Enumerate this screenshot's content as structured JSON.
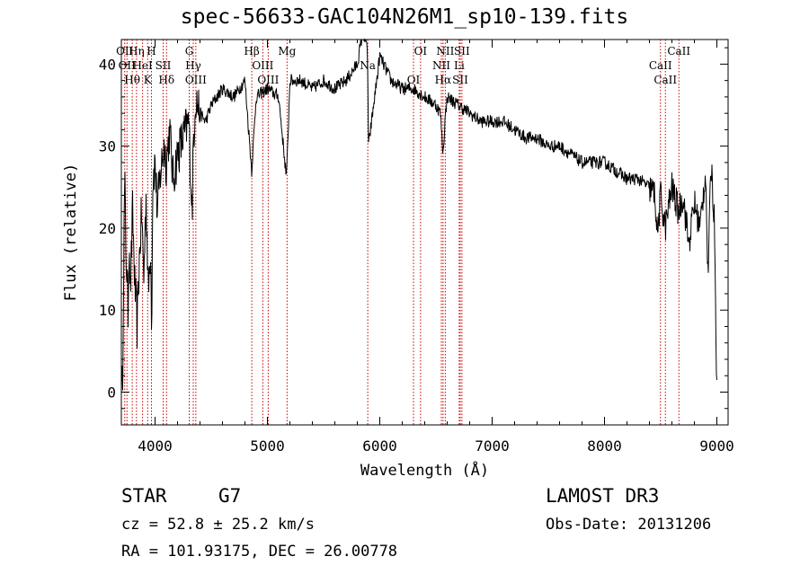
{
  "chart_data": {
    "type": "line",
    "title": "spec-56633-GAC104N26M1_sp10-139.fits",
    "xlabel": "Wavelength (Å)",
    "ylabel": "Flux (relative)",
    "xlim": [
      3700,
      9100
    ],
    "ylim": [
      -4,
      43
    ],
    "xticks": [
      4000,
      5000,
      6000,
      7000,
      8000,
      9000
    ],
    "yticks": [
      0,
      10,
      20,
      30,
      40
    ],
    "grid": false,
    "series": [
      {
        "name": "flux",
        "x": [
          3700,
          3710,
          3720,
          3730,
          3740,
          3750,
          3760,
          3770,
          3780,
          3800,
          3820,
          3840,
          3860,
          3880,
          3900,
          3920,
          3940,
          3960,
          3970,
          3980,
          4000,
          4020,
          4050,
          4080,
          4100,
          4130,
          4160,
          4200,
          4250,
          4300,
          4330,
          4340,
          4360,
          4400,
          4450,
          4500,
          4550,
          4600,
          4700,
          4800,
          4860,
          4900,
          5000,
          5100,
          5170,
          5180,
          5200,
          5300,
          5400,
          5500,
          5600,
          5700,
          5800,
          5850,
          5890,
          5900,
          6000,
          6100,
          6200,
          6300,
          6400,
          6500,
          6540,
          6563,
          6580,
          6600,
          6700,
          6800,
          6900,
          7000,
          7100,
          7200,
          7300,
          7400,
          7500,
          7600,
          7700,
          7800,
          7900,
          8000,
          8100,
          8200,
          8300,
          8400,
          8450,
          8470,
          8500,
          8540,
          8600,
          8660,
          8700,
          8750,
          8800,
          8850,
          8900,
          8920,
          8950,
          8980,
          9000
        ],
        "values": [
          2,
          0,
          15,
          26,
          18,
          14,
          10,
          20,
          12,
          22,
          13,
          8,
          16,
          22,
          14,
          24,
          12,
          18,
          8,
          26,
          28,
          22,
          27,
          30,
          28,
          32,
          26,
          29,
          31,
          33,
          22,
          30,
          36,
          34,
          33,
          35,
          36,
          37,
          36,
          38,
          27,
          36,
          37,
          36,
          26,
          30,
          38,
          38,
          37,
          38,
          37,
          38,
          40,
          44,
          42,
          30,
          41,
          38,
          37,
          37,
          36,
          35,
          34,
          29,
          33,
          36,
          35,
          34,
          33,
          33,
          33,
          32,
          31,
          31,
          30,
          30,
          29,
          28,
          28,
          28,
          27,
          26,
          26,
          25,
          24,
          19,
          24,
          20,
          25,
          22,
          24,
          18,
          23,
          20,
          27,
          14,
          28,
          20,
          0
        ]
      }
    ],
    "lines": [
      {
        "x": 3730,
        "label": "OII"
      },
      {
        "x": 3750,
        "label": "OII"
      },
      {
        "x": 3797,
        "label": "Hθ"
      },
      {
        "x": 3835,
        "label": "Hη"
      },
      {
        "x": 3889,
        "label": "HeI"
      },
      {
        "x": 3934,
        "label": "K"
      },
      {
        "x": 3968,
        "label": "H"
      },
      {
        "x": 4072,
        "label": "SII"
      },
      {
        "x": 4102,
        "label": "Hδ"
      },
      {
        "x": 4304,
        "label": "G"
      },
      {
        "x": 4340,
        "label": "Hγ"
      },
      {
        "x": 4363,
        "label": "OIII"
      },
      {
        "x": 4861,
        "label": "Hβ"
      },
      {
        "x": 4959,
        "label": "OIII"
      },
      {
        "x": 5007,
        "label": "OIII"
      },
      {
        "x": 5175,
        "label": "Mg"
      },
      {
        "x": 5893,
        "label": "Na"
      },
      {
        "x": 6300,
        "label": "OI"
      },
      {
        "x": 6363,
        "label": "OI"
      },
      {
        "x": 6548,
        "label": "NII"
      },
      {
        "x": 6563,
        "label": "Hα"
      },
      {
        "x": 6583,
        "label": "NII"
      },
      {
        "x": 6707,
        "label": "Li"
      },
      {
        "x": 6716,
        "label": "SII"
      },
      {
        "x": 6731,
        "label": "SII"
      },
      {
        "x": 8498,
        "label": "CaII"
      },
      {
        "x": 8542,
        "label": "CaII"
      },
      {
        "x": 8662,
        "label": "CaII"
      }
    ]
  },
  "info": {
    "object_class": "STAR",
    "subclass": "G7",
    "redshift": "cz = 52.8 ± 25.2 km/s",
    "coords": "RA = 101.93175, DEC =  26.00778",
    "survey": "LAMOST DR3",
    "obs_date": "Obs-Date: 20131206"
  }
}
